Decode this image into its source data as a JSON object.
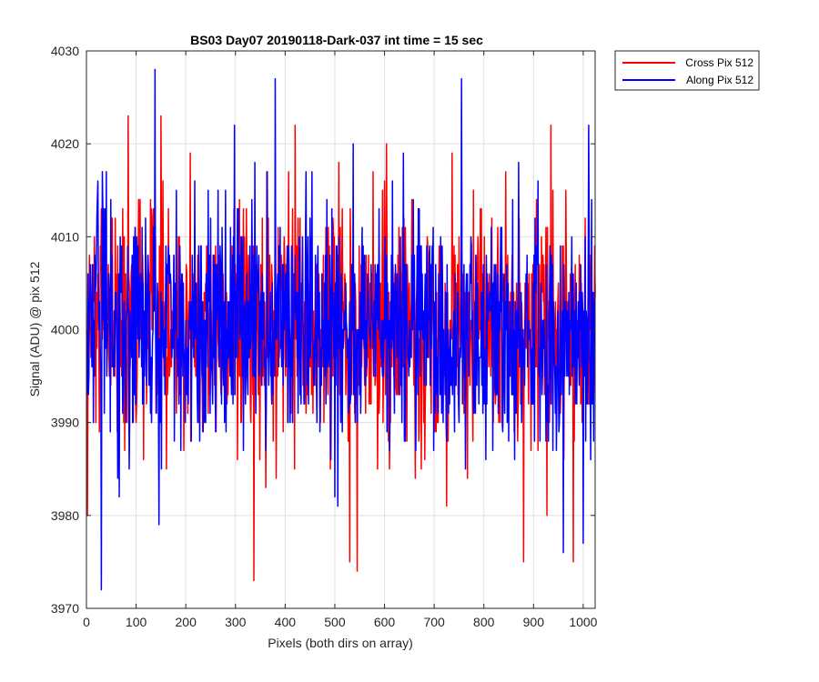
{
  "chart_data": {
    "type": "line",
    "title": "BS03 Day07 20190118-Dark-037 int time = 15 sec",
    "xlabel": "Pixels (both dirs on array)",
    "ylabel": "Signal (ADU) @ pix 512",
    "xlim": [
      0,
      1024
    ],
    "ylim": [
      3970,
      4030
    ],
    "xticks": [
      0,
      100,
      200,
      300,
      400,
      500,
      600,
      700,
      800,
      900,
      1000
    ],
    "yticks": [
      3970,
      3980,
      3990,
      4000,
      4010,
      4020,
      4030
    ],
    "grid": true,
    "legend_position": "outside-top-right",
    "series": [
      {
        "name": "Cross Pix 512",
        "color": "#ff0000",
        "mean": 4000,
        "noise_sigma": 6.5,
        "seed": 12345,
        "n_points": 1024,
        "x_start": 1,
        "x_step": 1,
        "extremes": [
          {
            "x": 2,
            "y": 3980
          },
          {
            "x": 84,
            "y": 4023
          },
          {
            "x": 150,
            "y": 4023
          },
          {
            "x": 337,
            "y": 3973
          },
          {
            "x": 420,
            "y": 4022
          },
          {
            "x": 530,
            "y": 3975
          },
          {
            "x": 545,
            "y": 3974
          },
          {
            "x": 880,
            "y": 3975
          },
          {
            "x": 935,
            "y": 4022
          },
          {
            "x": 980,
            "y": 3975
          }
        ]
      },
      {
        "name": "Along Pix 512",
        "color": "#0000ff",
        "mean": 4000,
        "noise_sigma": 6.5,
        "seed": 67890,
        "n_points": 1024,
        "x_start": 1,
        "x_step": 1,
        "extremes": [
          {
            "x": 30,
            "y": 3972
          },
          {
            "x": 138,
            "y": 4028
          },
          {
            "x": 380,
            "y": 4027
          },
          {
            "x": 755,
            "y": 4027
          },
          {
            "x": 960,
            "y": 3976
          },
          {
            "x": 1000,
            "y": 3977
          }
        ]
      }
    ]
  }
}
